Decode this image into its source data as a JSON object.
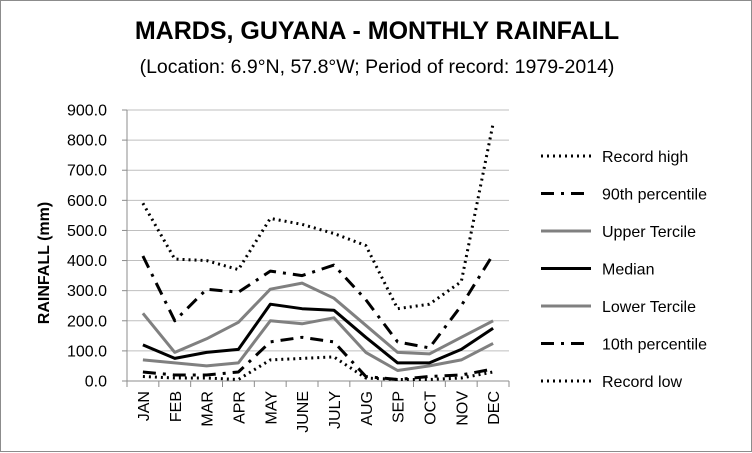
{
  "chart_data": {
    "type": "line",
    "title": "MARDS, GUYANA - MONTHLY RAINFALL",
    "subtitle": "(Location: 6.9°N, 57.8°W; Period of record: 1979-2014)",
    "xlabel": "",
    "ylabel": "RAINFALL (mm)",
    "ylim": [
      0,
      900
    ],
    "yticks": [
      "0.0",
      "100.0",
      "200.0",
      "300.0",
      "400.0",
      "500.0",
      "600.0",
      "700.0",
      "800.0",
      "900.0"
    ],
    "categories": [
      "JAN",
      "FEB",
      "MAR",
      "APR",
      "MAY",
      "JUNE",
      "JULY",
      "AUG",
      "SEP",
      "OCT",
      "NOV",
      "DEC"
    ],
    "grid": true,
    "legend_position": "right",
    "series": [
      {
        "name": "Record high",
        "style": "dotted",
        "color": "#000000",
        "values": [
          590,
          405,
          400,
          370,
          540,
          520,
          490,
          450,
          240,
          255,
          330,
          855
        ]
      },
      {
        "name": "90th percentile",
        "style": "dashdot",
        "color": "#000000",
        "values": [
          415,
          200,
          305,
          295,
          365,
          350,
          385,
          270,
          130,
          110,
          250,
          420
        ]
      },
      {
        "name": "Upper Tercile",
        "style": "solid",
        "color": "#808080",
        "values": [
          225,
          95,
          140,
          195,
          305,
          325,
          275,
          185,
          95,
          90,
          145,
          200
        ]
      },
      {
        "name": "Median",
        "style": "solid",
        "color": "#000000",
        "values": [
          120,
          75,
          95,
          105,
          255,
          240,
          235,
          145,
          60,
          60,
          105,
          175
        ]
      },
      {
        "name": "Lower Tercile",
        "style": "solid",
        "color": "#808080",
        "values": [
          70,
          60,
          50,
          60,
          200,
          190,
          210,
          95,
          35,
          50,
          70,
          125
        ]
      },
      {
        "name": "10th percentile",
        "style": "dashdot",
        "color": "#000000",
        "values": [
          30,
          20,
          20,
          30,
          130,
          145,
          130,
          15,
          5,
          15,
          20,
          40
        ]
      },
      {
        "name": "Record low",
        "style": "dotted",
        "color": "#000000",
        "values": [
          15,
          10,
          10,
          5,
          70,
          75,
          80,
          10,
          5,
          5,
          10,
          30
        ]
      }
    ]
  }
}
